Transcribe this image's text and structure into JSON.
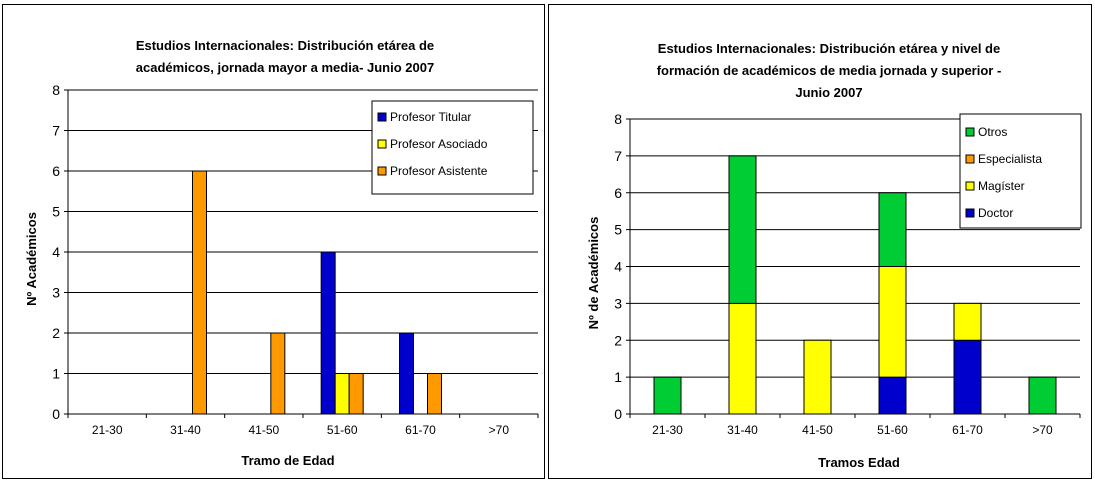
{
  "chart_data": [
    {
      "type": "bar",
      "title": [
        "Estudios Internacionales: Distribución etárea de",
        "académicos, jornada mayor a media- Junio 2007"
      ],
      "xlabel": "Tramo de Edad",
      "ylabel": "Nº Académicos",
      "ylim": [
        0,
        8
      ],
      "yticks": [
        0,
        1,
        2,
        3,
        4,
        5,
        6,
        7,
        8
      ],
      "grid": true,
      "legend_position": "top-right",
      "categories": [
        "21-30",
        "31-40",
        "41-50",
        "51-60",
        "61-70",
        ">70"
      ],
      "series": [
        {
          "name": "Profesor Titular",
          "color": "#0000cc",
          "values": [
            0,
            0,
            0,
            4,
            2,
            0
          ]
        },
        {
          "name": "Profesor Asociado",
          "color": "#ffff00",
          "values": [
            0,
            0,
            0,
            1,
            0,
            0
          ]
        },
        {
          "name": "Profesor Asistente",
          "color": "#ff9900",
          "values": [
            0,
            6,
            2,
            1,
            1,
            0
          ]
        }
      ]
    },
    {
      "type": "bar",
      "stacked": true,
      "title": [
        "Estudios Internacionales: Distribución etárea y nivel de",
        "formación de académicos de media jornada y superior -",
        "Junio 2007"
      ],
      "xlabel": "Tramos Edad",
      "ylabel": "Nº de Académicos",
      "ylim": [
        0,
        8
      ],
      "yticks": [
        0,
        1,
        2,
        3,
        4,
        5,
        6,
        7,
        8
      ],
      "grid": true,
      "legend_position": "top-right",
      "categories": [
        "21-30",
        "31-40",
        "41-50",
        "51-60",
        "61-70",
        ">70"
      ],
      "series": [
        {
          "name": "Doctor",
          "color": "#0000cc",
          "values": [
            0,
            0,
            0,
            1,
            2,
            0
          ]
        },
        {
          "name": "Magíster",
          "color": "#ffff00",
          "values": [
            0,
            3,
            2,
            3,
            1,
            0
          ]
        },
        {
          "name": "Especialista",
          "color": "#ff9900",
          "values": [
            0,
            0,
            0,
            0,
            0,
            0
          ]
        },
        {
          "name": "Otros",
          "color": "#00cc33",
          "values": [
            1,
            4,
            0,
            2,
            0,
            1
          ]
        }
      ],
      "legend_order": [
        "Otros",
        "Especialista",
        "Magíster",
        "Doctor"
      ]
    }
  ]
}
